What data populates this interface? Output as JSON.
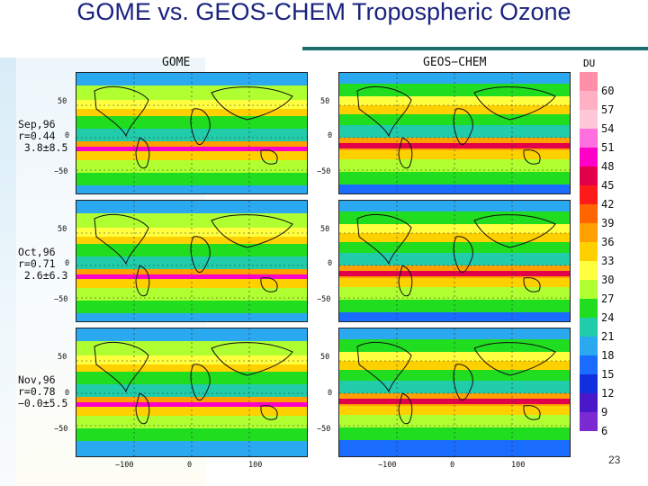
{
  "slide": {
    "title": "GOME vs. GEOS-CHEM Tropospheric Ozone",
    "page_number": "23"
  },
  "columns": [
    "GOME",
    "GEOS−CHEM"
  ],
  "panels": [
    {
      "line1": "Sep,96",
      "line2": "r=0.44",
      "line3": " 3.8±8.5"
    },
    {
      "line1": "Oct,96",
      "line2": "r=0.71",
      "line3": " 2.6±6.3"
    },
    {
      "line1": "Nov,96",
      "line2": "r=0.78",
      "line3": "−0.0±5.5"
    }
  ],
  "lat_ticks": [
    "50",
    "0",
    "−50"
  ],
  "lon_ticks": [
    "−100",
    "0",
    "100"
  ],
  "colorbar": {
    "unit": "DU",
    "labels": [
      "60",
      "57",
      "54",
      "51",
      "48",
      "45",
      "42",
      "39",
      "36",
      "33",
      "30",
      "27",
      "24",
      "21",
      "18",
      "15",
      "12",
      "9",
      "6"
    ],
    "colors": [
      "#ff8fa8",
      "#ffb0c4",
      "#ffc8d8",
      "#ff6fe0",
      "#ff00c8",
      "#e2004a",
      "#ff1a1a",
      "#ff6600",
      "#ffa000",
      "#ffd000",
      "#ffff40",
      "#b0ff30",
      "#20dd20",
      "#20ccaa",
      "#2aa8f0",
      "#1a6cff",
      "#1030e0",
      "#4a18c8",
      "#7a2ad0"
    ]
  }
}
